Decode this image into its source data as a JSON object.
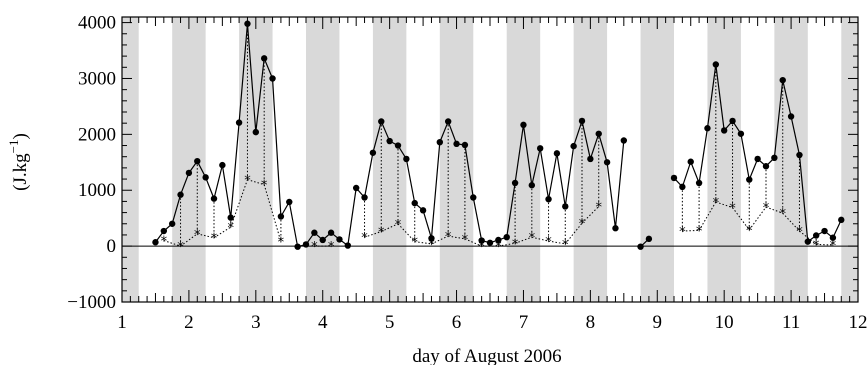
{
  "chart_data": {
    "type": "line",
    "title": "",
    "xlabel": "day of August 2006",
    "ylabel": "(J.kg",
    "ylabel_exponent": "−1",
    "ylabel_suffix": ")",
    "xlim": [
      1,
      12
    ],
    "ylim": [
      -1000,
      4100
    ],
    "x_ticks": [
      1,
      2,
      3,
      4,
      5,
      6,
      7,
      8,
      9,
      10,
      11,
      12
    ],
    "x_tick_labels": [
      "1",
      "2",
      "3",
      "4",
      "5",
      "6",
      "7",
      "8",
      "9",
      "10",
      "11",
      "12"
    ],
    "y_ticks": [
      -1000,
      0,
      1000,
      2000,
      3000,
      4000
    ],
    "y_tick_labels": [
      "−1000",
      "0",
      "1000",
      "2000",
      "3000",
      "4000"
    ],
    "night_bands": [
      [
        1,
        1.25
      ],
      [
        1.75,
        2.25
      ],
      [
        2.75,
        3.25
      ],
      [
        3.75,
        4.25
      ],
      [
        4.75,
        5.25
      ],
      [
        5.75,
        6.25
      ],
      [
        6.75,
        7.25
      ],
      [
        7.75,
        8.25
      ],
      [
        8.75,
        9.25
      ],
      [
        9.75,
        10.25
      ],
      [
        10.75,
        11.25
      ],
      [
        11.75,
        12
      ]
    ],
    "grid": false,
    "legend": "none",
    "series": [
      {
        "style": "solid line with filled circles",
        "color": "#000000",
        "segments": [
          [
            [
              1.5,
              70
            ],
            [
              1.625,
              270
            ],
            [
              1.75,
              400
            ],
            [
              1.875,
              920
            ],
            [
              2.0,
              1310
            ],
            [
              2.125,
              1520
            ],
            [
              2.25,
              1230
            ],
            [
              2.375,
              850
            ],
            [
              2.5,
              1450
            ],
            [
              2.625,
              510
            ],
            [
              2.75,
              2210
            ],
            [
              2.875,
              3980
            ],
            [
              3.0,
              2040
            ],
            [
              3.125,
              3360
            ],
            [
              3.25,
              3000
            ],
            [
              3.375,
              530
            ],
            [
              3.5,
              790
            ],
            [
              3.625,
              -10
            ],
            [
              3.75,
              30
            ],
            [
              3.875,
              240
            ],
            [
              4.0,
              110
            ],
            [
              4.125,
              240
            ],
            [
              4.25,
              120
            ],
            [
              4.375,
              10
            ],
            [
              4.5,
              1040
            ],
            [
              4.625,
              870
            ],
            [
              4.75,
              1670
            ],
            [
              4.875,
              2230
            ],
            [
              5.0,
              1880
            ],
            [
              5.125,
              1800
            ],
            [
              5.25,
              1560
            ],
            [
              5.375,
              770
            ],
            [
              5.5,
              640
            ],
            [
              5.625,
              140
            ],
            [
              5.75,
              1860
            ],
            [
              5.875,
              2230
            ],
            [
              6.0,
              1830
            ],
            [
              6.125,
              1810
            ],
            [
              6.25,
              870
            ],
            [
              6.375,
              100
            ],
            [
              6.5,
              60
            ],
            [
              6.625,
              110
            ],
            [
              6.75,
              160
            ],
            [
              6.875,
              1130
            ],
            [
              7.0,
              2170
            ],
            [
              7.125,
              1090
            ],
            [
              7.25,
              1750
            ],
            [
              7.375,
              840
            ],
            [
              7.5,
              1660
            ],
            [
              7.625,
              710
            ],
            [
              7.75,
              1790
            ],
            [
              7.875,
              2240
            ],
            [
              8.0,
              1560
            ],
            [
              8.125,
              2010
            ],
            [
              8.25,
              1500
            ],
            [
              8.375,
              320
            ],
            [
              8.5,
              1890
            ]
          ],
          [
            [
              8.75,
              -10
            ],
            [
              8.875,
              130
            ]
          ],
          [
            [
              9.25,
              1220
            ],
            [
              9.375,
              1060
            ],
            [
              9.5,
              1510
            ],
            [
              9.625,
              1130
            ],
            [
              9.75,
              2110
            ],
            [
              9.875,
              3250
            ],
            [
              10.0,
              2070
            ],
            [
              10.125,
              2240
            ],
            [
              10.25,
              2010
            ],
            [
              10.375,
              1190
            ],
            [
              10.5,
              1560
            ],
            [
              10.625,
              1430
            ],
            [
              10.75,
              1580
            ],
            [
              10.875,
              2970
            ],
            [
              11.0,
              2320
            ],
            [
              11.125,
              1630
            ],
            [
              11.25,
              80
            ],
            [
              11.375,
              190
            ],
            [
              11.5,
              270
            ],
            [
              11.625,
              150
            ],
            [
              11.75,
              470
            ]
          ]
        ]
      },
      {
        "style": "dotted line with asterisk markers",
        "color": "#000000",
        "points": [
          [
            1.625,
            100
          ],
          [
            1.875,
            0
          ],
          [
            2.125,
            220
          ],
          [
            2.375,
            150
          ],
          [
            2.625,
            340
          ],
          [
            2.875,
            1190
          ],
          [
            3.125,
            1100
          ],
          [
            3.375,
            80
          ],
          [
            3.875,
            0
          ],
          [
            4.125,
            0
          ],
          [
            4.625,
            160
          ],
          [
            4.875,
            260
          ],
          [
            5.125,
            400
          ],
          [
            5.375,
            80
          ],
          [
            5.625,
            40
          ],
          [
            5.875,
            180
          ],
          [
            6.125,
            130
          ],
          [
            6.375,
            0
          ],
          [
            6.625,
            0
          ],
          [
            6.875,
            50
          ],
          [
            7.125,
            160
          ],
          [
            7.375,
            90
          ],
          [
            7.625,
            40
          ],
          [
            7.875,
            410
          ],
          [
            8.125,
            710
          ],
          [
            9.375,
            270
          ],
          [
            9.625,
            280
          ],
          [
            9.875,
            790
          ],
          [
            10.125,
            690
          ],
          [
            10.375,
            290
          ],
          [
            10.625,
            700
          ],
          [
            10.875,
            590
          ],
          [
            11.125,
            270
          ],
          [
            11.375,
            30
          ],
          [
            11.625,
            20
          ]
        ],
        "drops": [
          [
            1.875,
            920
          ],
          [
            2.125,
            1520
          ],
          [
            2.375,
            850
          ],
          [
            2.625,
            510
          ],
          [
            2.875,
            3980
          ],
          [
            3.125,
            3360
          ],
          [
            3.375,
            530
          ],
          [
            4.625,
            870
          ],
          [
            4.875,
            2230
          ],
          [
            5.125,
            1800
          ],
          [
            5.375,
            770
          ],
          [
            5.625,
            140
          ],
          [
            5.875,
            2230
          ],
          [
            6.125,
            1810
          ],
          [
            6.375,
            100
          ],
          [
            6.875,
            1130
          ],
          [
            7.125,
            1090
          ],
          [
            7.375,
            840
          ],
          [
            7.625,
            710
          ],
          [
            7.875,
            2240
          ],
          [
            8.125,
            2010
          ],
          [
            9.375,
            1060
          ],
          [
            9.625,
            1130
          ],
          [
            9.875,
            3250
          ],
          [
            10.125,
            2240
          ],
          [
            10.375,
            1190
          ],
          [
            10.625,
            1430
          ],
          [
            10.875,
            2970
          ],
          [
            11.125,
            1630
          ],
          [
            11.375,
            190
          ],
          [
            11.625,
            150
          ]
        ]
      }
    ]
  }
}
